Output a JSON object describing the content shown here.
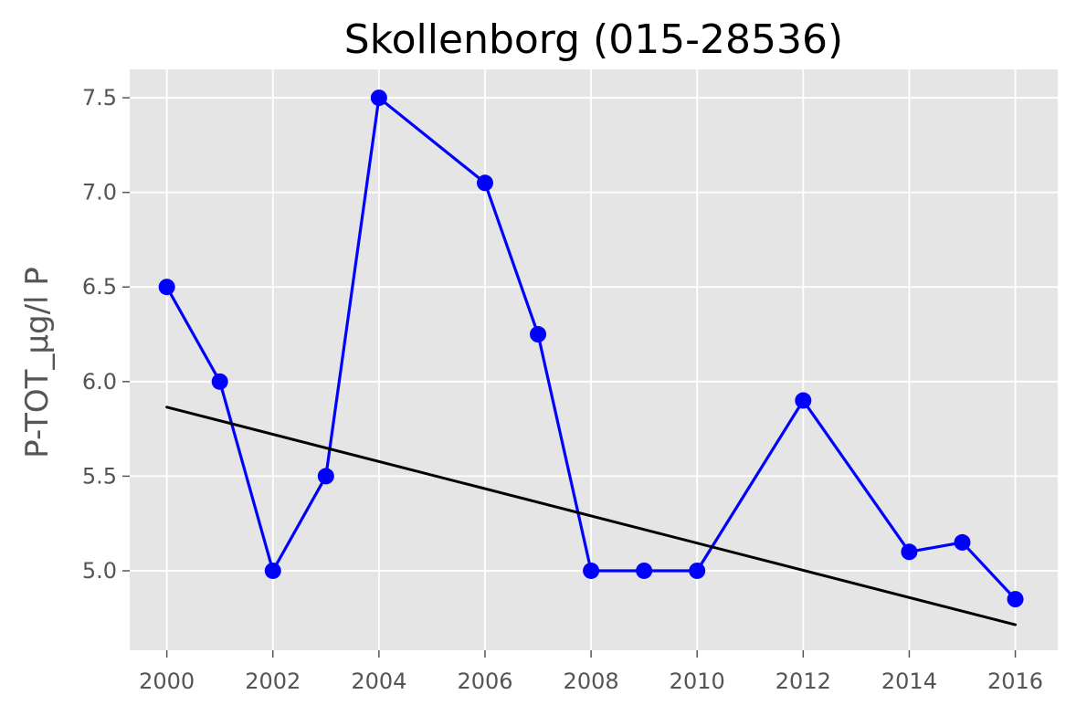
{
  "chart_data": {
    "type": "line",
    "title": "Skollenborg (015-28536)",
    "xlabel": "",
    "ylabel": "P-TOT_µg/l P",
    "xlim": [
      1999.3,
      2016.8
    ],
    "ylim": [
      4.58,
      7.65
    ],
    "xticks": [
      2000,
      2002,
      2004,
      2006,
      2008,
      2010,
      2012,
      2014,
      2016
    ],
    "yticks": [
      5.0,
      5.5,
      6.0,
      6.5,
      7.0,
      7.5
    ],
    "grid": true,
    "legend": "none",
    "series": [
      {
        "role": "data",
        "color": "#0000ff",
        "marker": "circle",
        "points": [
          {
            "x": 2000,
            "y": 6.5
          },
          {
            "x": 2001,
            "y": 6.0
          },
          {
            "x": 2002,
            "y": 5.0
          },
          {
            "x": 2003,
            "y": 5.5
          },
          {
            "x": 2004,
            "y": 7.5
          },
          {
            "x": 2006,
            "y": 7.05
          },
          {
            "x": 2007,
            "y": 6.25
          },
          {
            "x": 2008,
            "y": 5.0
          },
          {
            "x": 2009,
            "y": 5.0
          },
          {
            "x": 2010,
            "y": 5.0
          },
          {
            "x": 2012,
            "y": 5.9
          },
          {
            "x": 2014,
            "y": 5.1
          },
          {
            "x": 2015,
            "y": 5.15
          },
          {
            "x": 2016,
            "y": 4.85
          }
        ]
      },
      {
        "role": "trend",
        "color": "#000000",
        "marker": "none",
        "points": [
          {
            "x": 2000,
            "y": 5.865
          },
          {
            "x": 2016,
            "y": 4.715
          }
        ]
      }
    ],
    "colors": {
      "plot_background": "#e5e5e5",
      "grid": "#ffffff",
      "tick_label": "#555555",
      "axis_label": "#555555",
      "title": "#000000"
    }
  }
}
